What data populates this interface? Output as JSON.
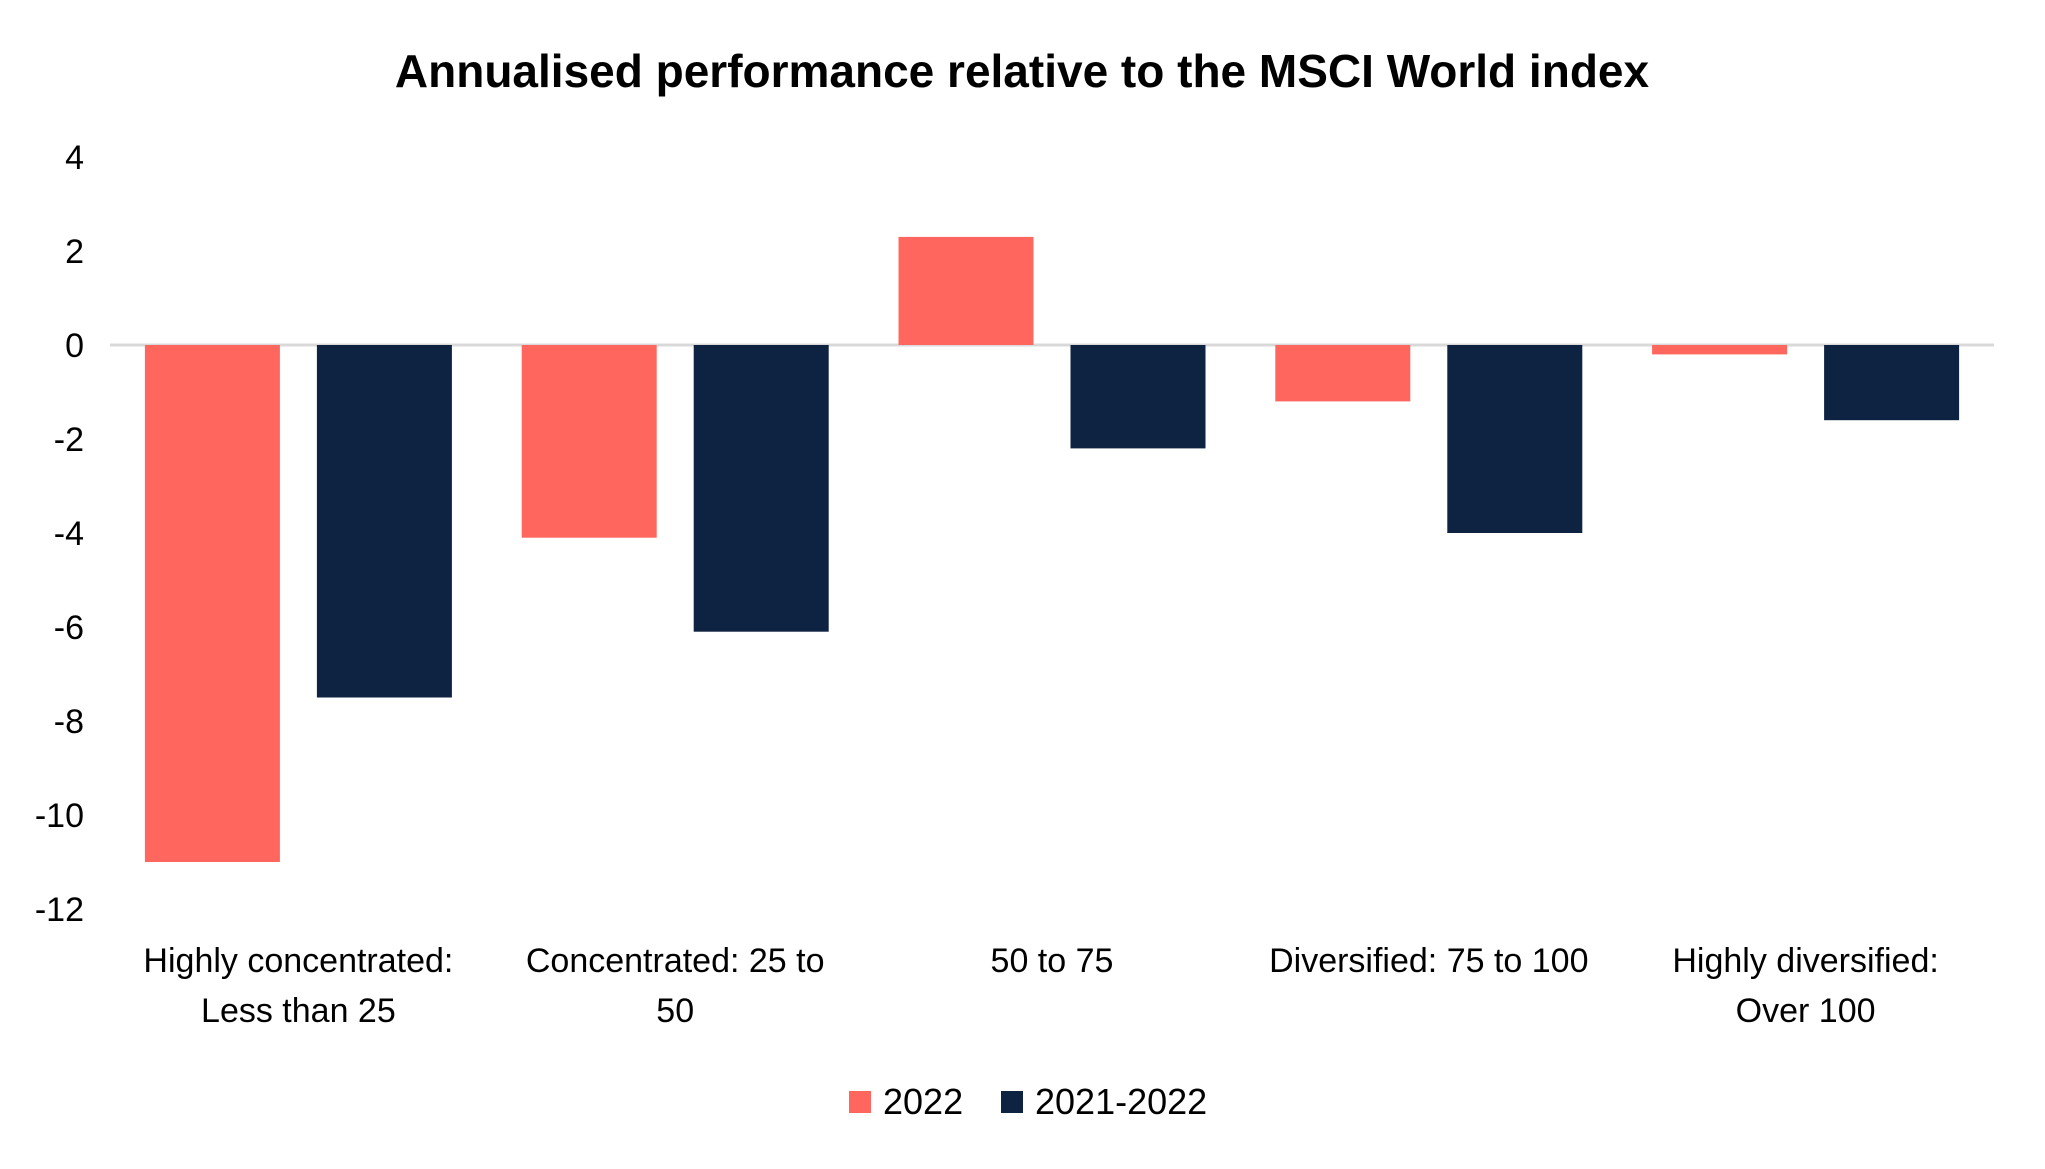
{
  "chart_data": {
    "type": "bar",
    "title": "Annualised performance relative to the MSCI World index",
    "xlabel": "",
    "ylabel": "",
    "categories": [
      [
        "Highly concentrated:",
        "Less than 25"
      ],
      [
        "Concentrated: 25 to",
        "50"
      ],
      [
        "50 to 75"
      ],
      [
        "Diversified: 75 to 100"
      ],
      [
        "Highly diversified:",
        "Over 100"
      ]
    ],
    "series": [
      {
        "name": "2022",
        "color": "#FF665E",
        "values": [
          -11.0,
          -4.1,
          2.3,
          -1.2,
          -0.2
        ]
      },
      {
        "name": "2021-2022",
        "color": "#0E2241",
        "values": [
          -7.5,
          -6.1,
          -2.2,
          -4.0,
          -1.6
        ]
      }
    ],
    "ylim": [
      -12,
      4
    ],
    "yticks": [
      4,
      2,
      0,
      -2,
      -4,
      -6,
      -8,
      -10,
      -12
    ],
    "ytick_labels": [
      "4",
      "2",
      "0",
      "-2",
      "-4",
      "-6",
      "-8",
      "-10",
      "-12"
    ],
    "grid": false,
    "zero_line_color": "#D9D9D9",
    "legend": {
      "position": "bottom",
      "entries": [
        "2022",
        "2021-2022"
      ]
    }
  }
}
